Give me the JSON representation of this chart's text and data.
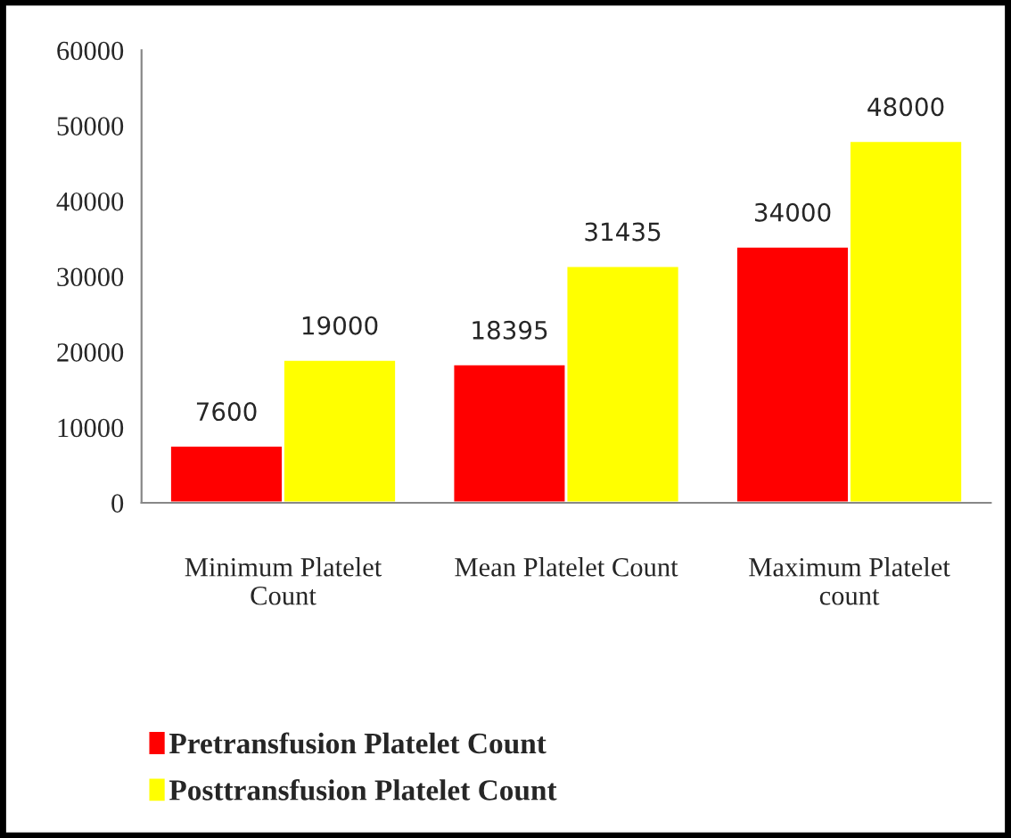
{
  "chart_data": {
    "type": "bar",
    "categories": [
      "Minimum Platelet\nCount",
      "Mean Platelet Count",
      "Maximum Platelet\ncount"
    ],
    "series": [
      {
        "name": "Pretransfusion Platelet Count",
        "color": "#ff0000",
        "values": [
          7600,
          18395,
          34000
        ]
      },
      {
        "name": "Posttransfusion Platelet Count",
        "color": "#ffff00",
        "values": [
          19000,
          31435,
          48000
        ]
      }
    ],
    "ylim": [
      0,
      60000
    ],
    "yticks": [
      0,
      10000,
      20000,
      30000,
      40000,
      50000,
      60000
    ],
    "data_labels": true,
    "grid": false,
    "legend": "bottom"
  }
}
